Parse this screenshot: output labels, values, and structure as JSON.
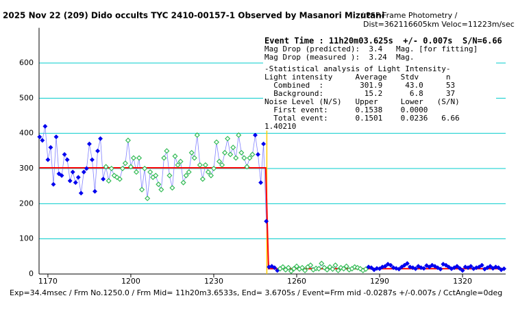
{
  "chart_data": {
    "type": "scatter",
    "title": "2025 Nov 22 (209) Dido occults TYC 2410-00157-1 Observed by Masanori Mizutani",
    "subtitle": "/ PSF-Frame Photometry /",
    "distance_note": "Dist=362116605km Veloc=11223m/sec",
    "footer": "Exp=34.4msec / Frm No.1250.0 / Frm Mid= 11h20m3.6533s, End= 3.6705s / Event=Frm mid -0.0287s +/-0.007s / CctAngle=0deg",
    "annotations": [
      "Event Time : 11h20m03.625s  +/- 0.007s  S/N=6.66",
      "Mag Drop (predicted):  3.4   Mag. [for fitting]",
      "Mag Drop (measured ):  3.24  Mag.",
      "-Statistical analysis of Light Intensity-",
      "Light intensity     Average   Stdv      n",
      "  Combined  :        301.9     43.0     53",
      "  Background:         15.2      6.8     37",
      "Noise Level (N/S)   Upper     Lower   (S/N)",
      "  First event:      0.1538    0.0000",
      "  Total event:      0.1501    0.0236   6.66",
      "1.40210"
    ],
    "xlim": [
      1166.8,
      1335.6
    ],
    "ylim": [
      0,
      700
    ],
    "xticks": [
      1170,
      1200,
      1230,
      1260,
      1290,
      1320
    ],
    "yticks": [
      0,
      100,
      200,
      300,
      400,
      500,
      600
    ],
    "grid": true,
    "grid_color": "#00cccc",
    "line_color": "#8080ff",
    "event_line": {
      "x": 1249.2,
      "color": "#ffcc00"
    },
    "fit": {
      "color": "#ff0000",
      "x": [
        1167,
        1248.8,
        1249.8,
        1335
      ],
      "values": [
        301.9,
        301.9,
        15.2,
        15.2
      ]
    },
    "series": [
      {
        "color": "#0000ee",
        "filled": true,
        "x": [
          1167,
          1168,
          1169,
          1170,
          1171,
          1172,
          1173,
          1174,
          1175,
          1176,
          1177,
          1178,
          1179,
          1180,
          1181,
          1182,
          1183,
          1184,
          1185,
          1186,
          1187,
          1188,
          1189,
          1190
        ],
        "values": [
          390,
          380,
          420,
          325,
          360,
          255,
          390,
          285,
          280,
          340,
          325,
          265,
          290,
          260,
          275,
          230,
          290,
          300,
          370,
          325,
          235,
          350,
          385,
          270
        ]
      },
      {
        "color": "#33bb55",
        "filled": false,
        "x": [
          1191,
          1192,
          1193,
          1194,
          1195,
          1196,
          1197,
          1198,
          1199,
          1200,
          1201,
          1202,
          1203,
          1204,
          1205,
          1206,
          1207,
          1208,
          1209,
          1210,
          1211,
          1212,
          1213,
          1214,
          1215,
          1216,
          1217,
          1218,
          1219,
          1220,
          1221,
          1222,
          1223,
          1224,
          1225,
          1226,
          1227,
          1228,
          1229,
          1230,
          1231,
          1232,
          1233,
          1234,
          1235,
          1236,
          1237,
          1238,
          1239,
          1240,
          1241,
          1242,
          1243,
          1244
        ],
        "values": [
          305,
          265,
          300,
          280,
          275,
          270,
          300,
          315,
          380,
          305,
          330,
          290,
          330,
          240,
          300,
          215,
          290,
          275,
          280,
          255,
          240,
          330,
          350,
          280,
          245,
          335,
          310,
          320,
          260,
          280,
          290,
          345,
          330,
          395,
          310,
          270,
          310,
          290,
          280,
          300,
          375,
          320,
          310,
          345,
          385,
          340,
          360,
          330,
          395,
          345,
          330,
          305,
          330,
          340
        ]
      },
      {
        "color": "#0000ee",
        "filled": true,
        "x": [
          1245,
          1246,
          1247,
          1248,
          1249,
          1250,
          1251,
          1252,
          1253
        ],
        "values": [
          395,
          340,
          260,
          370,
          150,
          20,
          22,
          18,
          10
        ]
      },
      {
        "color": "#33bb55",
        "filled": false,
        "x": [
          1254,
          1255,
          1256,
          1257,
          1258,
          1259,
          1260,
          1261,
          1262,
          1263,
          1264,
          1265,
          1266,
          1267,
          1268,
          1269,
          1270,
          1271,
          1272,
          1273,
          1274,
          1275,
          1276,
          1277,
          1278,
          1279,
          1280,
          1281,
          1282,
          1283,
          1284,
          1285
        ],
        "values": [
          15,
          20,
          12,
          18,
          8,
          15,
          22,
          14,
          18,
          10,
          20,
          25,
          12,
          16,
          15,
          30,
          18,
          12,
          20,
          14,
          25,
          10,
          18,
          15,
          22,
          12,
          15,
          20,
          18,
          15,
          10,
          14
        ]
      },
      {
        "color": "#0000ee",
        "filled": true,
        "x": [
          1286,
          1287,
          1288,
          1289,
          1290,
          1291,
          1292,
          1293,
          1294,
          1295,
          1296,
          1297,
          1298,
          1299,
          1300,
          1301,
          1302,
          1303,
          1304,
          1305,
          1306,
          1307,
          1308,
          1309,
          1310,
          1311,
          1312,
          1313,
          1314,
          1315,
          1316,
          1317,
          1318,
          1319,
          1320,
          1321,
          1322,
          1323,
          1324,
          1325,
          1326,
          1327,
          1328,
          1329,
          1330,
          1331,
          1332,
          1333,
          1334,
          1335
        ],
        "values": [
          20,
          18,
          12,
          16,
          15,
          20,
          22,
          28,
          25,
          18,
          16,
          14,
          20,
          25,
          30,
          20,
          18,
          15,
          22,
          18,
          16,
          24,
          20,
          25,
          22,
          18,
          14,
          28,
          25,
          20,
          15,
          18,
          22,
          16,
          10,
          20,
          18,
          22,
          15,
          18,
          20,
          25,
          14,
          18,
          22,
          16,
          20,
          18,
          12,
          15
        ]
      }
    ]
  }
}
